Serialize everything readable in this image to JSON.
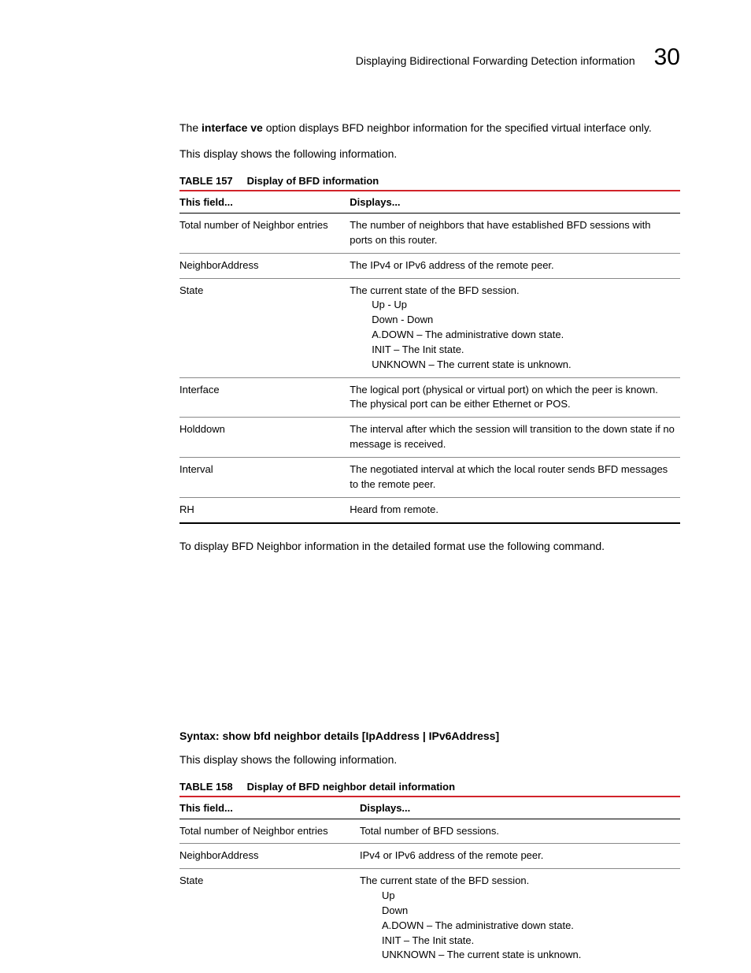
{
  "header": {
    "running_title": "Displaying Bidirectional Forwarding Detection information",
    "chapter_number": "30"
  },
  "intro": {
    "sentence_prefix": "The ",
    "bold_term": "interface ve",
    "sentence_suffix": " option displays BFD neighbor information for the specified virtual interface only.",
    "lead_in": "This display shows the following information."
  },
  "table157": {
    "label": "TABLE 157",
    "caption": "Display of BFD information",
    "col1_header": "This field...",
    "col2_header": "Displays...",
    "col1_width_pct": 34,
    "rows": [
      {
        "field": "Total number of Neighbor entries",
        "desc": [
          "The number of neighbors that have established BFD sessions with ports on this router."
        ]
      },
      {
        "field": "NeighborAddress",
        "desc": [
          "The IPv4 or IPv6 address of the remote peer."
        ]
      },
      {
        "field": "State",
        "desc": [
          "The current state of the BFD session."
        ],
        "sub": [
          "Up - Up",
          "Down - Down",
          "A.DOWN – The administrative down state.",
          "INIT – The Init state.",
          "UNKNOWN – The current state is unknown."
        ]
      },
      {
        "field": "Interface",
        "desc": [
          "The logical port (physical or virtual port) on which the peer is known. The physical port can be either Ethernet or POS."
        ]
      },
      {
        "field": "Holddown",
        "desc": [
          "The interval after which the session will transition to the down state if no message is received."
        ]
      },
      {
        "field": "Interval",
        "desc": [
          "The negotiated interval at which the local router sends BFD messages to the remote peer."
        ]
      },
      {
        "field": "RH",
        "desc": [
          "Heard from remote."
        ]
      }
    ]
  },
  "mid_text": {
    "after_table157": "To display BFD Neighbor information in the detailed format use the following command.",
    "syntax": "Syntax:  show bfd neighbor details [IpAddress | IPv6Address]",
    "lead_in2": "This display shows the following information."
  },
  "table158": {
    "label": "TABLE 158",
    "caption": "Display of BFD neighbor detail information",
    "col1_header": "This field...",
    "col2_header": "Displays...",
    "col1_width_pct": 36,
    "rows": [
      {
        "field": "Total number of Neighbor entries",
        "desc": [
          "Total number of BFD sessions."
        ]
      },
      {
        "field": "NeighborAddress",
        "desc": [
          "IPv4 or IPv6 address of the remote peer."
        ]
      },
      {
        "field": "State",
        "desc": [
          "The current state of the BFD session."
        ],
        "sub": [
          "Up",
          "Down",
          "A.DOWN – The administrative down state.",
          "INIT – The Init state.",
          "UNKNOWN – The current state is unknown."
        ],
        "no_bottom_border": true
      }
    ]
  }
}
